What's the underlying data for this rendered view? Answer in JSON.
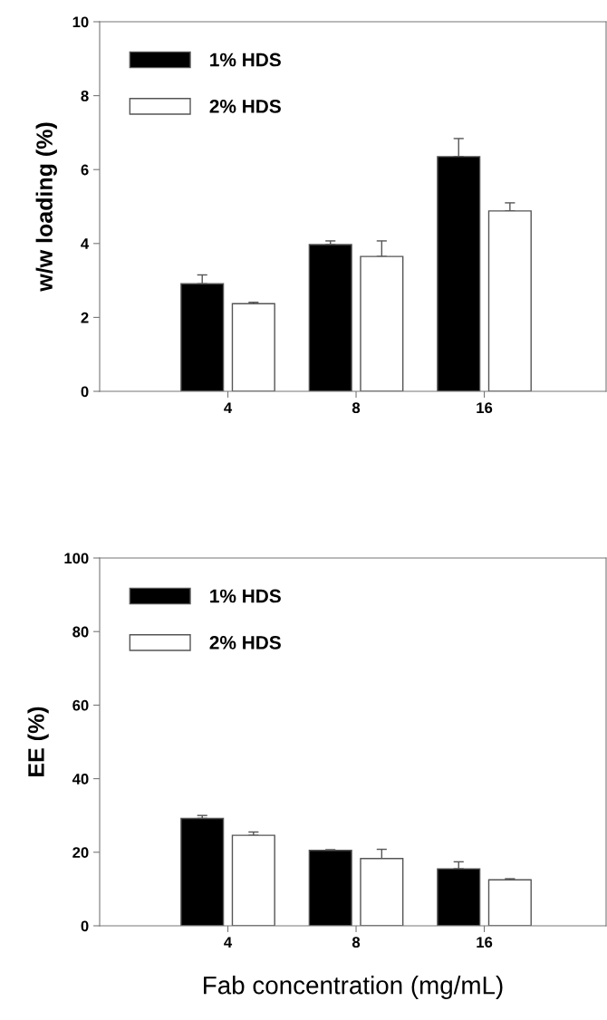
{
  "chart_data": [
    {
      "type": "bar",
      "ylabel": "w/w loading (%)",
      "categories": [
        "4",
        "8",
        "16"
      ],
      "ylim": [
        0,
        10
      ],
      "yticks": [
        0,
        2,
        4,
        6,
        8,
        10
      ],
      "legend": "top left",
      "grid": false,
      "series": [
        {
          "name": "1% HDS",
          "color": "#000000",
          "values": [
            2.91,
            3.97,
            6.35
          ],
          "errors": [
            [
              2.91,
              3.15
            ],
            [
              3.97,
              4.07
            ],
            [
              6.35,
              6.84
            ]
          ]
        },
        {
          "name": "2% HDS",
          "color": "#ffffff",
          "values": [
            2.37,
            3.65,
            4.88
          ],
          "errors": [
            [
              2.37,
              2.41
            ],
            [
              3.65,
              4.07
            ],
            [
              4.88,
              5.1
            ]
          ]
        }
      ]
    },
    {
      "type": "bar",
      "ylabel": "EE (%)",
      "xlabel": "Fab concentration (mg/mL)",
      "categories": [
        "4",
        "8",
        "16"
      ],
      "ylim": [
        0,
        100
      ],
      "yticks": [
        0,
        20,
        40,
        60,
        80,
        100
      ],
      "legend": "top left",
      "grid": false,
      "series": [
        {
          "name": "1% HDS",
          "color": "#000000",
          "values": [
            29.2,
            20.5,
            15.5
          ],
          "errors": [
            [
              29.2,
              30.0
            ],
            [
              20.5,
              20.7
            ],
            [
              15.5,
              17.4
            ]
          ]
        },
        {
          "name": "2% HDS",
          "color": "#ffffff",
          "values": [
            24.6,
            18.3,
            12.5
          ],
          "errors": [
            [
              24.6,
              25.5
            ],
            [
              18.3,
              20.8
            ],
            [
              12.5,
              12.8
            ]
          ]
        }
      ]
    }
  ]
}
